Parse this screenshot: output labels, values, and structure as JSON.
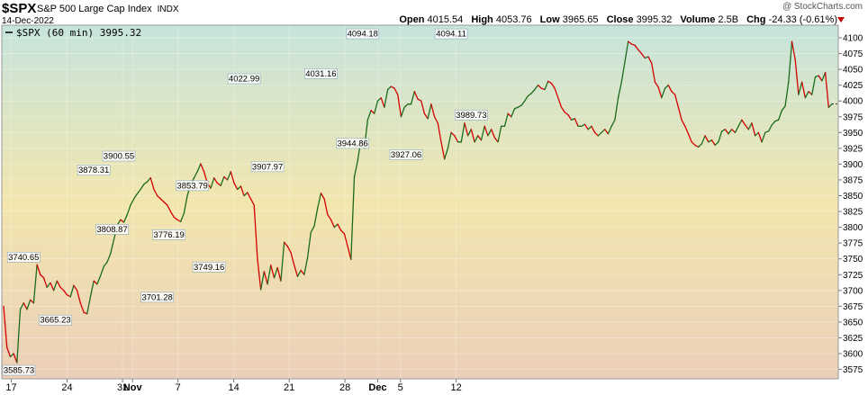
{
  "header": {
    "symbol": "$SPX",
    "description": "S&P 500 Large Cap Index",
    "exchange": "INDX",
    "date": "14-Dec-2022",
    "watermark": "@ StockCharts.com",
    "open_label": "Open",
    "open": "4015.54",
    "high_label": "High",
    "high": "4053.76",
    "low_label": "Low",
    "low": "3965.65",
    "close_label": "Close",
    "close": "3995.32",
    "volume_label": "Volume",
    "volume": "2.5B",
    "chg_label": "Chg",
    "chg": "-24.33 (-0.61%)"
  },
  "legend": {
    "text": "$SPX (60 min) 3995.32"
  },
  "colors": {
    "up": "#1b6b1b",
    "down": "#d40000",
    "bg_top": "#c6e4dc",
    "bg_mid": "#f2e6ae",
    "bg_bottom": "#ebcfb8"
  },
  "chart_data": {
    "type": "line",
    "ylim": [
      3560,
      4120
    ],
    "y_ticks": [
      3575,
      3600,
      3625,
      3650,
      3675,
      3700,
      3725,
      3750,
      3775,
      3800,
      3825,
      3850,
      3875,
      3900,
      3925,
      3950,
      3975,
      4000,
      4025,
      4050,
      4075,
      4100
    ],
    "x_ticks": [
      {
        "label": "17",
        "i": 2.3
      },
      {
        "label": "24",
        "i": 19
      },
      {
        "label": "31",
        "i": 35.6
      },
      {
        "label": "Nov",
        "i": 38.6
      },
      {
        "label": "7",
        "i": 52.2
      },
      {
        "label": "14",
        "i": 68.9
      },
      {
        "label": "21",
        "i": 85.5
      },
      {
        "label": "28",
        "i": 102.2
      },
      {
        "label": "Dec",
        "i": 112
      },
      {
        "label": "5",
        "i": 118.8
      },
      {
        "label": "12",
        "i": 135.5
      }
    ],
    "annotations": [
      {
        "text": "3585.73",
        "i": 2,
        "y": 3585.73,
        "pos": "below"
      },
      {
        "text": "3740.65",
        "i": 6,
        "y": 3740.65,
        "pos": "above"
      },
      {
        "text": "3665.23",
        "i": 15.5,
        "y": 3665.23,
        "pos": "below"
      },
      {
        "text": "3878.31",
        "i": 27,
        "y": 3878.31,
        "pos": "above"
      },
      {
        "text": "3808.87",
        "i": 32.5,
        "y": 3808.87,
        "pos": "below"
      },
      {
        "text": "3900.55",
        "i": 34.5,
        "y": 3900.55,
        "pos": "above"
      },
      {
        "text": "3701.28",
        "i": 46,
        "y": 3701.28,
        "pos": "below"
      },
      {
        "text": "3776.19",
        "i": 49.5,
        "y": 3776.19,
        "pos": "above"
      },
      {
        "text": "3853.79",
        "i": 56.5,
        "y": 3853.79,
        "pos": "above"
      },
      {
        "text": "3749.16",
        "i": 61.5,
        "y": 3749.16,
        "pos": "below"
      },
      {
        "text": "4022.99",
        "i": 72,
        "y": 4022.99,
        "pos": "above"
      },
      {
        "text": "3907.97",
        "i": 79,
        "y": 3907.97,
        "pos": "below"
      },
      {
        "text": "4031.16",
        "i": 95,
        "y": 4031.16,
        "pos": "above"
      },
      {
        "text": "3944.86",
        "i": 104.5,
        "y": 3944.86,
        "pos": "below"
      },
      {
        "text": "4094.18",
        "i": 107.5,
        "y": 4094.18,
        "pos": "above"
      },
      {
        "text": "3927.06",
        "i": 120.5,
        "y": 3927.06,
        "pos": "below"
      },
      {
        "text": "4094.11",
        "i": 134,
        "y": 4094.11,
        "pos": "above"
      },
      {
        "text": "3989.73",
        "i": 140,
        "y": 3989.73,
        "pos": "below"
      }
    ],
    "last_value": 3995.32,
    "series": [
      {
        "values": [
          3675,
          3610,
          3595,
          3600,
          3585.73,
          3670,
          3680,
          3670,
          3685,
          3680,
          3740.65,
          3725,
          3720,
          3705,
          3712,
          3700,
          3715,
          3705,
          3700,
          3693,
          3690,
          3708,
          3700,
          3680,
          3665.23,
          3663,
          3690,
          3715,
          3710,
          3723,
          3738,
          3745,
          3758,
          3780,
          3803,
          3812,
          3808,
          3820,
          3835,
          3845,
          3853,
          3860,
          3868,
          3872,
          3878.31,
          3860,
          3850,
          3845,
          3840,
          3835,
          3825,
          3816,
          3812,
          3808.87,
          3822,
          3850,
          3868,
          3878,
          3888,
          3900.55,
          3888,
          3870,
          3862,
          3878,
          3870,
          3866,
          3880,
          3875,
          3888,
          3870,
          3860,
          3865,
          3850,
          3855,
          3845,
          3835,
          3750,
          3701.28,
          3730,
          3710,
          3740,
          3720,
          3736,
          3715,
          3776.19,
          3770,
          3760,
          3740,
          3722,
          3732,
          3725,
          3752,
          3792,
          3802,
          3830,
          3853.79,
          3845,
          3820,
          3812,
          3800,
          3805,
          3795,
          3790,
          3770,
          3749.16,
          3880,
          3905,
          3940,
          3925,
          3970,
          3985,
          3980,
          4000,
          4005,
          3990,
          4018,
          4022.99,
          4020,
          4010,
          3975,
          3990,
          3995,
          3995,
          4015,
          4003,
          4000,
          3980,
          3972,
          3995,
          3975,
          3965,
          3935,
          3907.97,
          3925,
          3950,
          3945,
          3935,
          3935,
          3965,
          3945,
          3955,
          3935,
          3945,
          3938,
          3960,
          3945,
          3955,
          3942,
          3935,
          3960,
          3960,
          3980,
          3975,
          3988,
          3990,
          3993,
          4000,
          4008,
          4012,
          4018,
          4025,
          4020,
          4018,
          4031.16,
          4028,
          4020,
          4005,
          3990,
          3982,
          3978,
          3970,
          3972,
          3960,
          3960,
          3963,
          3955,
          3960,
          3950,
          3944.86,
          3950,
          3955,
          3948,
          3960,
          3970,
          4005,
          4030,
          4062,
          4094.18,
          4090,
          4088,
          4081,
          4075,
          4068,
          4070,
          4060,
          4030,
          4022,
          4005,
          4020,
          4025,
          4015,
          4010,
          3990,
          3970,
          3960,
          3948,
          3935,
          3930,
          3927.06,
          3932,
          3945,
          3935,
          3938,
          3930,
          3935,
          3952,
          3955,
          3948,
          3955,
          3950,
          3960,
          3970,
          3962,
          3955,
          3965,
          3945,
          3950,
          3935,
          3950,
          3952,
          3962,
          3968,
          3970,
          3985,
          3992,
          4030,
          4094.11,
          4065,
          4010,
          4030,
          4005,
          4015,
          4010,
          4038,
          4040,
          4032,
          4045,
          3989.73,
          3995.32
        ]
      }
    ]
  }
}
